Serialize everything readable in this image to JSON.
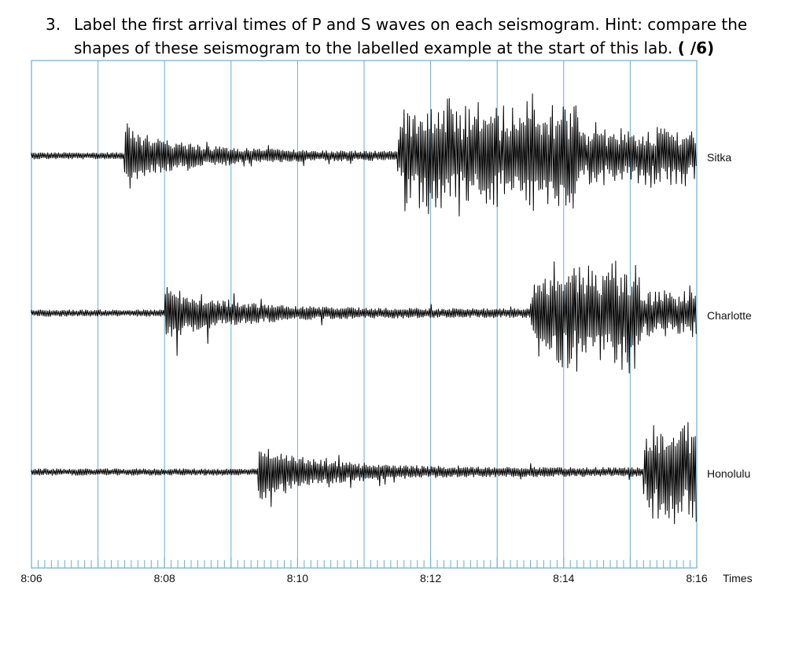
{
  "question": {
    "number": "3.",
    "line1": "Label the first arrival times of P and S waves on each seismogram. Hint: compare the",
    "line2": "shapes of these seismogram to the labelled example at the start of this lab.",
    "points": "(    /6)"
  },
  "chart_data": {
    "type": "line",
    "x_unit_label": "Times",
    "x_ticks": [
      "8:06",
      "8:08",
      "8:10",
      "8:12",
      "8:14",
      "8:16"
    ],
    "x_range_minutes": [
      "8:06",
      "8:16"
    ],
    "minor_ticks_per_minute": 10,
    "gridline_every_minutes": 1,
    "series": [
      {
        "name": "Sitka",
        "p_wave_start": "8:07.4",
        "s_wave_start": "8:11.5",
        "end": "8:16"
      },
      {
        "name": "Charlotte",
        "p_wave_start": "8:08",
        "s_wave_start": "8:13.5",
        "end": "8:16"
      },
      {
        "name": "Honolulu",
        "p_wave_start": "8:09.4",
        "s_wave_start": "8:15.2",
        "end": "8:16"
      }
    ]
  },
  "colors": {
    "grid": "#6aaed6",
    "trace": "#000000"
  }
}
